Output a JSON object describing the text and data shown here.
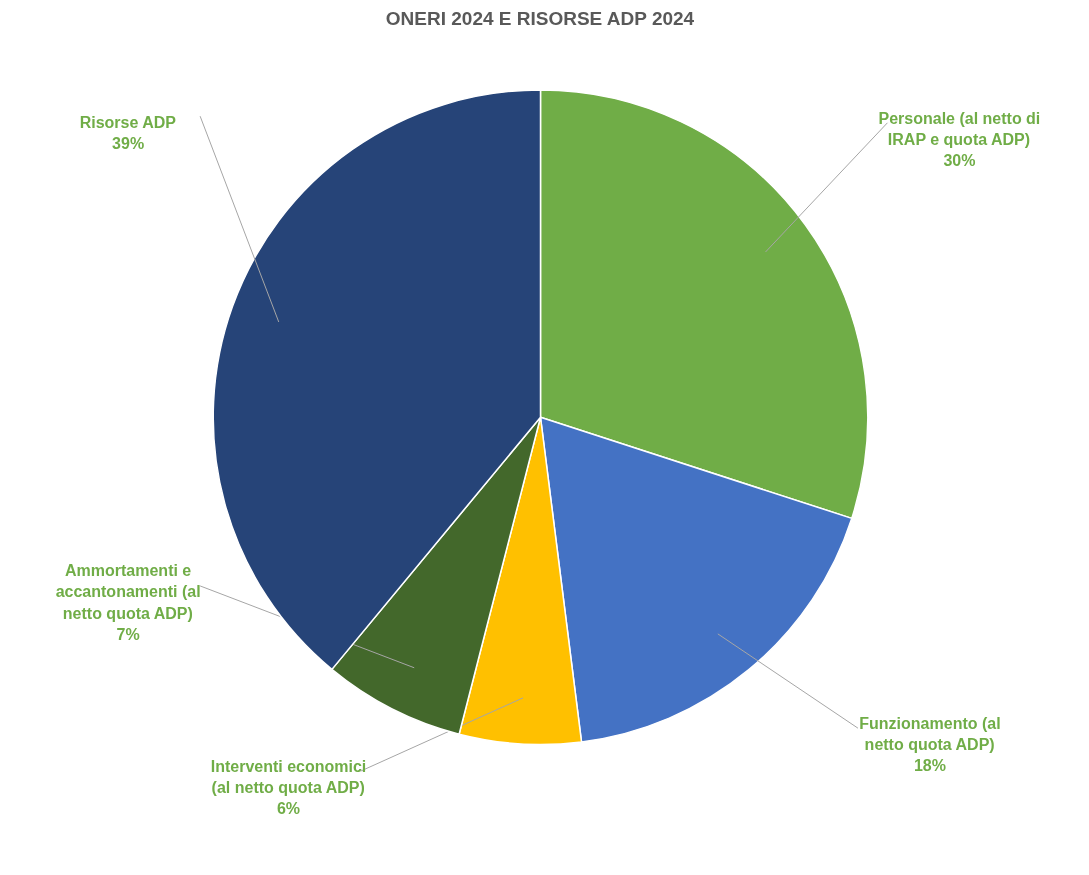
{
  "chart_data": {
    "type": "pie",
    "title": "ONERI 2024 E RISORSE ADP 2024",
    "categories": [
      "Personale (al netto di IRAP e quota ADP)",
      "Funzionamento (al netto quota ADP)",
      "Interventi economici (al netto quota ADP)",
      "Ammortamenti e accantonamenti (al netto quota ADP)",
      "Risorse ADP"
    ],
    "values": [
      30,
      18,
      6,
      7,
      39
    ],
    "colors": [
      "#70ad47",
      "#4472c4",
      "#ffc000",
      "#43682b",
      "#264478"
    ],
    "value_labels": [
      "30%",
      "18%",
      "6%",
      "7%",
      "39%"
    ]
  }
}
